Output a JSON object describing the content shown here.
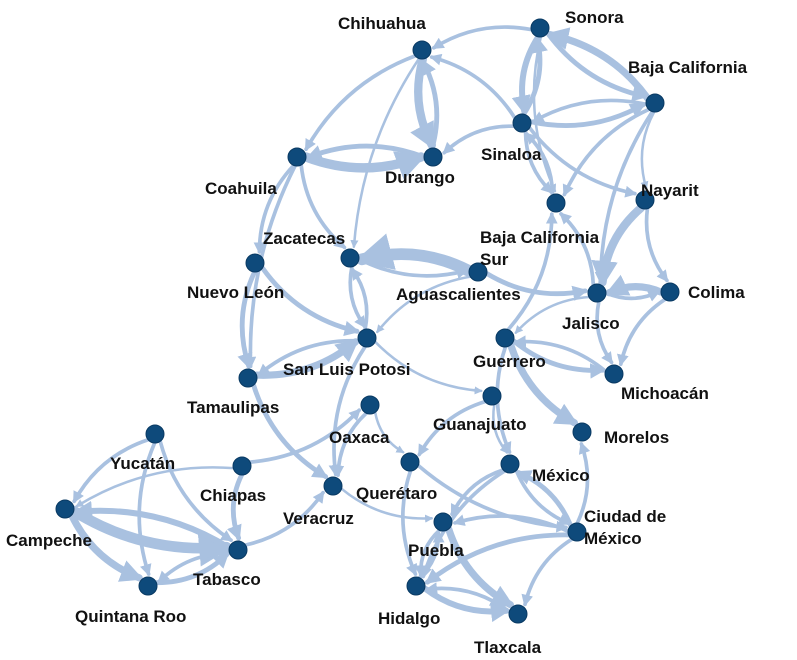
{
  "graph": {
    "edge_color": "#a9c1e0",
    "node_color": "#0e4a7b",
    "nodes": [
      {
        "id": "sonora",
        "label": [
          "Sonora"
        ]
      },
      {
        "id": "chihuahua",
        "label": [
          "Chihuahua"
        ]
      },
      {
        "id": "bcn",
        "label": [
          "Baja California"
        ]
      },
      {
        "id": "sinaloa",
        "label": [
          "Sinaloa"
        ]
      },
      {
        "id": "durango",
        "label": [
          "Durango"
        ]
      },
      {
        "id": "coahuila",
        "label": [
          "Coahuila"
        ]
      },
      {
        "id": "nayarit",
        "label": [
          "Nayarit"
        ]
      },
      {
        "id": "bcs",
        "label": [
          "Baja California",
          "Sur"
        ]
      },
      {
        "id": "zacatecas",
        "label": [
          "Zacatecas"
        ]
      },
      {
        "id": "aguascalientes",
        "label": [
          "Aguascalientes"
        ]
      },
      {
        "id": "nuevoleon",
        "label": [
          "Nuevo León"
        ]
      },
      {
        "id": "jalisco",
        "label": [
          "Jalisco"
        ]
      },
      {
        "id": "colima",
        "label": [
          "Colima"
        ]
      },
      {
        "id": "slp",
        "label": [
          "San Luis Potosi"
        ]
      },
      {
        "id": "guerrero",
        "label": [
          "Guerrero"
        ]
      },
      {
        "id": "michoacan",
        "label": [
          "Michoacán"
        ]
      },
      {
        "id": "tamaulipas",
        "label": [
          "Tamaulipas"
        ]
      },
      {
        "id": "guanajuato",
        "label": [
          "Guanajuato"
        ]
      },
      {
        "id": "oaxaca",
        "label": [
          "Oaxaca"
        ]
      },
      {
        "id": "morelos",
        "label": [
          "Morelos"
        ]
      },
      {
        "id": "yucatan",
        "label": [
          "Yucatán"
        ]
      },
      {
        "id": "chiapas",
        "label": [
          "Chiapas"
        ]
      },
      {
        "id": "queretaro",
        "label": [
          "Querétaro"
        ]
      },
      {
        "id": "mexico",
        "label": [
          "México"
        ]
      },
      {
        "id": "veracruz",
        "label": [
          "Veracruz"
        ]
      },
      {
        "id": "campeche",
        "label": [
          "Campeche"
        ]
      },
      {
        "id": "cdmx",
        "label": [
          "Ciudad de",
          "México"
        ]
      },
      {
        "id": "puebla",
        "label": [
          "Puebla"
        ]
      },
      {
        "id": "tabasco",
        "label": [
          "Tabasco"
        ]
      },
      {
        "id": "qroo",
        "label": [
          "Quintana Roo"
        ]
      },
      {
        "id": "hidalgo",
        "label": [
          "Hidalgo"
        ]
      },
      {
        "id": "tlaxcala",
        "label": [
          "Tlaxcala"
        ]
      }
    ],
    "edges": [
      {
        "source": "sonora",
        "target": "chihuahua",
        "weight": 2
      },
      {
        "source": "sonora",
        "target": "bcn",
        "weight": 3
      },
      {
        "source": "bcn",
        "target": "sonora",
        "weight": 5
      },
      {
        "source": "sonora",
        "target": "sinaloa",
        "weight": 4
      },
      {
        "source": "sinaloa",
        "target": "sonora",
        "weight": 3
      },
      {
        "source": "sinaloa",
        "target": "bcn",
        "weight": 3
      },
      {
        "source": "bcn",
        "target": "sinaloa",
        "weight": 2
      },
      {
        "source": "sinaloa",
        "target": "chihuahua",
        "weight": 2
      },
      {
        "source": "sinaloa",
        "target": "durango",
        "weight": 2
      },
      {
        "source": "sinaloa",
        "target": "nayarit",
        "weight": 2
      },
      {
        "source": "sinaloa",
        "target": "bcs",
        "weight": 2
      },
      {
        "source": "bcs",
        "target": "sinaloa",
        "weight": 2
      },
      {
        "source": "bcn",
        "target": "bcs",
        "weight": 2
      },
      {
        "source": "bcn",
        "target": "nayarit",
        "weight": 1
      },
      {
        "source": "bcn",
        "target": "jalisco",
        "weight": 2
      },
      {
        "source": "sonora",
        "target": "bcs",
        "weight": 1
      },
      {
        "source": "chihuahua",
        "target": "durango",
        "weight": 6
      },
      {
        "source": "durango",
        "target": "chihuahua",
        "weight": 3
      },
      {
        "source": "chihuahua",
        "target": "coahuila",
        "weight": 2
      },
      {
        "source": "chihuahua",
        "target": "zacatecas",
        "weight": 1
      },
      {
        "source": "coahuila",
        "target": "durango",
        "weight": 7
      },
      {
        "source": "durango",
        "target": "coahuila",
        "weight": 3
      },
      {
        "source": "coahuila",
        "target": "zacatecas",
        "weight": 2
      },
      {
        "source": "coahuila",
        "target": "nuevoleon",
        "weight": 2
      },
      {
        "source": "coahuila",
        "target": "tamaulipas",
        "weight": 2
      },
      {
        "source": "nayarit",
        "target": "jalisco",
        "weight": 6
      },
      {
        "source": "nayarit",
        "target": "colima",
        "weight": 2
      },
      {
        "source": "aguascalientes",
        "target": "zacatecas",
        "weight": 9
      },
      {
        "source": "zacatecas",
        "target": "aguascalientes",
        "weight": 2
      },
      {
        "source": "zacatecas",
        "target": "slp",
        "weight": 2
      },
      {
        "source": "slp",
        "target": "zacatecas",
        "weight": 2
      },
      {
        "source": "aguascalientes",
        "target": "jalisco",
        "weight": 3
      },
      {
        "source": "aguascalientes",
        "target": "slp",
        "weight": 1
      },
      {
        "source": "nuevoleon",
        "target": "slp",
        "weight": 3
      },
      {
        "source": "nuevoleon",
        "target": "tamaulipas",
        "weight": 3
      },
      {
        "source": "tamaulipas",
        "target": "slp",
        "weight": 5
      },
      {
        "source": "slp",
        "target": "tamaulipas",
        "weight": 2
      },
      {
        "source": "tamaulipas",
        "target": "veracruz",
        "weight": 3
      },
      {
        "source": "slp",
        "target": "veracruz",
        "weight": 2
      },
      {
        "source": "slp",
        "target": "guanajuato",
        "weight": 1
      },
      {
        "source": "colima",
        "target": "jalisco",
        "weight": 5
      },
      {
        "source": "jalisco",
        "target": "colima",
        "weight": 2
      },
      {
        "source": "jalisco",
        "target": "michoacan",
        "weight": 2
      },
      {
        "source": "colima",
        "target": "michoacan",
        "weight": 2
      },
      {
        "source": "jalisco",
        "target": "guerrero",
        "weight": 1
      },
      {
        "source": "jalisco",
        "target": "bcs",
        "weight": 2
      },
      {
        "source": "guerrero",
        "target": "morelos",
        "weight": 5
      },
      {
        "source": "guerrero",
        "target": "michoacan",
        "weight": 3
      },
      {
        "source": "michoacan",
        "target": "guerrero",
        "weight": 2
      },
      {
        "source": "guerrero",
        "target": "mexico",
        "weight": 2
      },
      {
        "source": "guerrero",
        "target": "bcs",
        "weight": 2
      },
      {
        "source": "guanajuato",
        "target": "queretaro",
        "weight": 2
      },
      {
        "source": "guanajuato",
        "target": "mexico",
        "weight": 1
      },
      {
        "source": "queretaro",
        "target": "cdmx",
        "weight": 2
      },
      {
        "source": "queretaro",
        "target": "hidalgo",
        "weight": 2
      },
      {
        "source": "oaxaca",
        "target": "veracruz",
        "weight": 2
      },
      {
        "source": "oaxaca",
        "target": "queretaro",
        "weight": 1
      },
      {
        "source": "chiapas",
        "target": "tabasco",
        "weight": 3
      },
      {
        "source": "chiapas",
        "target": "oaxaca",
        "weight": 2
      },
      {
        "source": "chiapas",
        "target": "campeche",
        "weight": 1
      },
      {
        "source": "yucatan",
        "target": "campeche",
        "weight": 2
      },
      {
        "source": "yucatan",
        "target": "qroo",
        "weight": 2
      },
      {
        "source": "yucatan",
        "target": "tabasco",
        "weight": 2
      },
      {
        "source": "campeche",
        "target": "tabasco",
        "weight": 8
      },
      {
        "source": "tabasco",
        "target": "campeche",
        "weight": 4
      },
      {
        "source": "campeche",
        "target": "qroo",
        "weight": 5
      },
      {
        "source": "qroo",
        "target": "tabasco",
        "weight": 3
      },
      {
        "source": "tabasco",
        "target": "qroo",
        "weight": 2
      },
      {
        "source": "tabasco",
        "target": "veracruz",
        "weight": 2
      },
      {
        "source": "veracruz",
        "target": "puebla",
        "weight": 1
      },
      {
        "source": "cdmx",
        "target": "mexico",
        "weight": 3
      },
      {
        "source": "mexico",
        "target": "cdmx",
        "weight": 2
      },
      {
        "source": "cdmx",
        "target": "puebla",
        "weight": 2
      },
      {
        "source": "cdmx",
        "target": "hidalgo",
        "weight": 3
      },
      {
        "source": "cdmx",
        "target": "tlaxcala",
        "weight": 2
      },
      {
        "source": "cdmx",
        "target": "morelos",
        "weight": 2
      },
      {
        "source": "mexico",
        "target": "hidalgo",
        "weight": 2
      },
      {
        "source": "mexico",
        "target": "puebla",
        "weight": 2
      },
      {
        "source": "puebla",
        "target": "tlaxcala",
        "weight": 5
      },
      {
        "source": "puebla",
        "target": "hidalgo",
        "weight": 2
      },
      {
        "source": "hidalgo",
        "target": "tlaxcala",
        "weight": 4
      },
      {
        "source": "tlaxcala",
        "target": "hidalgo",
        "weight": 2
      },
      {
        "source": "hidalgo",
        "target": "puebla",
        "weight": 2
      }
    ]
  }
}
